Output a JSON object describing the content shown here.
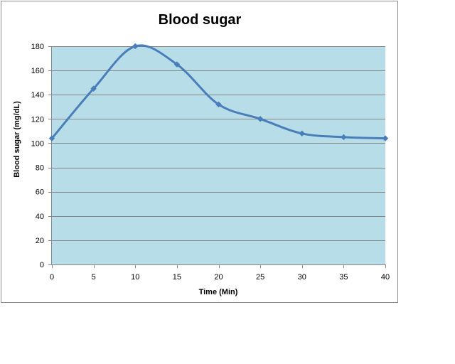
{
  "chart_data": {
    "type": "line",
    "title": "Blood sugar",
    "xlabel": "Time (Min)",
    "ylabel": "Blood sugar (mg/dL)",
    "x": [
      0,
      5,
      10,
      15,
      20,
      25,
      30,
      35,
      40
    ],
    "series": [
      {
        "values": [
          104,
          145,
          180,
          165,
          132,
          120,
          108,
          105,
          104
        ]
      }
    ],
    "xlim": [
      0,
      40
    ],
    "ylim": [
      0,
      180
    ],
    "xticks": [
      0,
      5,
      10,
      15,
      20,
      25,
      30,
      35,
      40
    ],
    "yticks": [
      0,
      20,
      40,
      60,
      80,
      100,
      120,
      140,
      160,
      180
    ],
    "grid": true,
    "legend": "none",
    "colors": {
      "plot_background": "#b7dde8",
      "series_line": "#4a7ebb",
      "gridline": "#868686"
    }
  }
}
